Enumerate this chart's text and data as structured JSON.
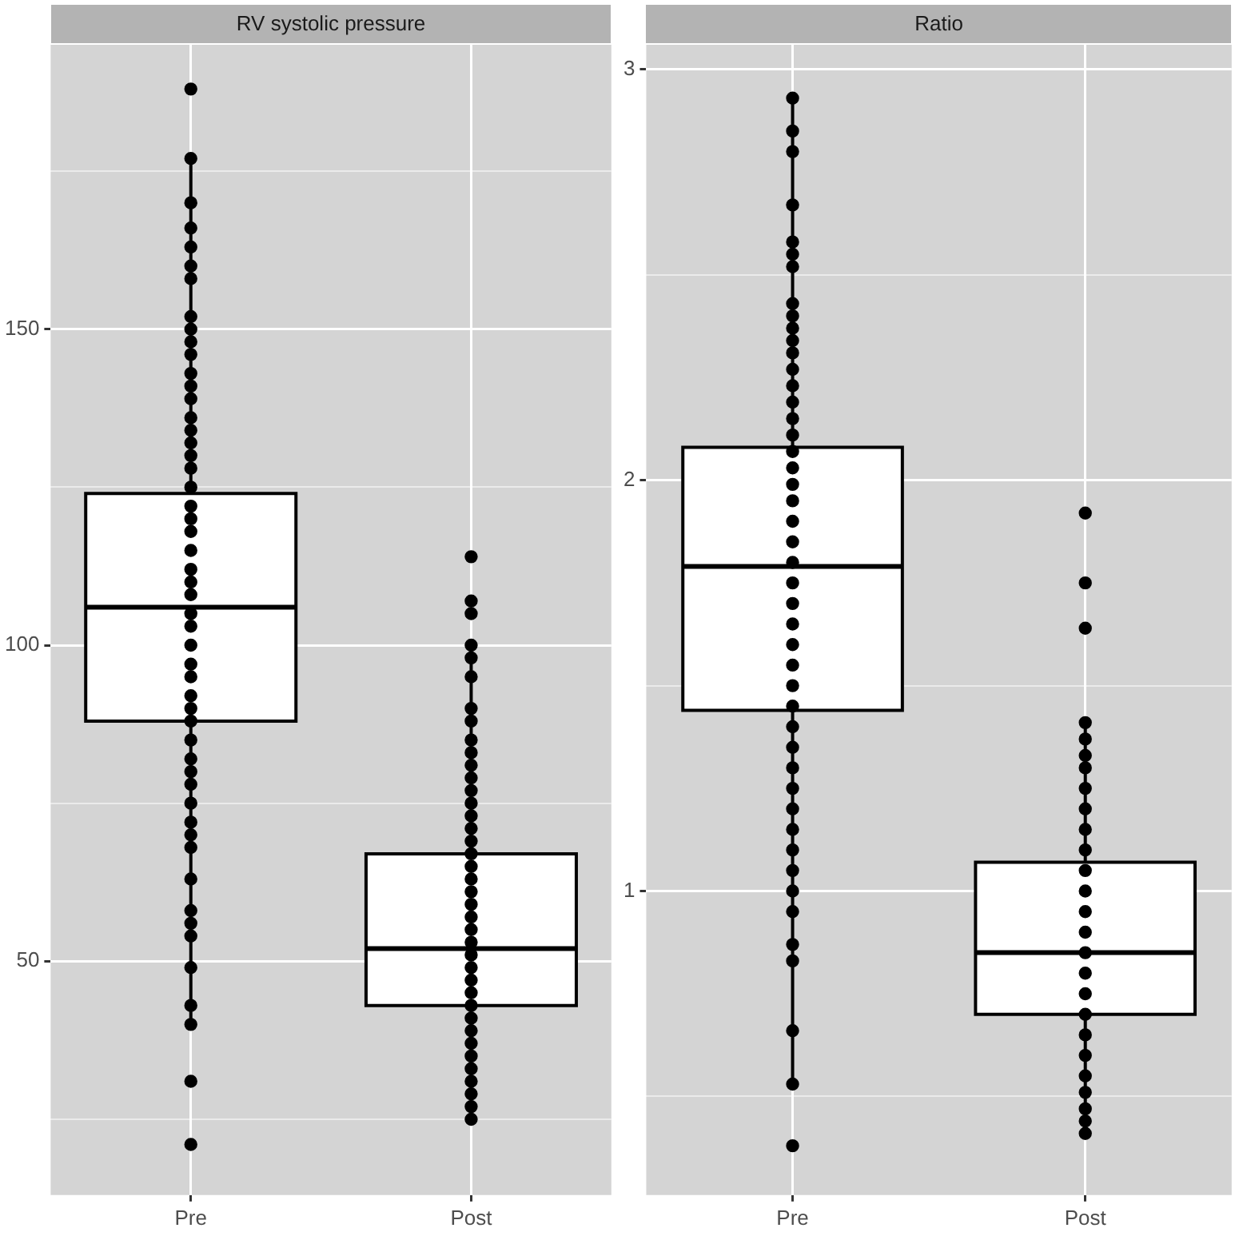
{
  "chart_data": [
    {
      "type": "box",
      "title": "RV systolic pressure",
      "categories": [
        "Pre",
        "Post"
      ],
      "grid": true,
      "ylim": [
        13,
        195
      ],
      "yticks": [
        {
          "value": 25,
          "label": null
        },
        50,
        {
          "value": 75,
          "label": null
        },
        100,
        {
          "value": 125,
          "label": null
        },
        150,
        {
          "value": 175,
          "label": null
        }
      ],
      "boxes": [
        {
          "low": 40,
          "q1": 88,
          "median": 106,
          "q3": 124,
          "high": 177
        },
        {
          "low": 26,
          "q1": 43,
          "median": 52,
          "q3": 67,
          "high": 100
        }
      ],
      "series": [
        {
          "type": "scatter",
          "color": "#000000",
          "x": [
            "Pre",
            "Pre",
            "Pre",
            "Pre",
            "Pre",
            "Pre",
            "Pre",
            "Pre",
            "Pre",
            "Pre",
            "Pre",
            "Pre",
            "Pre",
            "Pre",
            "Pre",
            "Pre",
            "Pre",
            "Pre",
            "Pre",
            "Pre",
            "Pre",
            "Pre",
            "Pre",
            "Pre",
            "Pre",
            "Pre",
            "Pre",
            "Pre",
            "Pre",
            "Pre",
            "Pre",
            "Pre",
            "Pre",
            "Pre",
            "Pre",
            "Pre",
            "Pre",
            "Pre",
            "Pre",
            "Pre",
            "Pre",
            "Pre",
            "Pre",
            "Pre",
            "Pre",
            "Pre",
            "Pre",
            "Pre",
            "Pre",
            "Pre",
            "Pre",
            "Pre"
          ],
          "values": [
            188,
            177,
            170,
            166,
            163,
            160,
            158,
            152,
            150,
            148,
            146,
            143,
            141,
            139,
            136,
            134,
            132,
            130,
            128,
            125,
            122,
            120,
            118,
            115,
            112,
            110,
            108,
            105,
            103,
            100,
            97,
            95,
            92,
            90,
            88,
            85,
            82,
            80,
            78,
            75,
            72,
            70,
            68,
            63,
            58,
            56,
            54,
            49,
            43,
            40,
            31,
            21
          ]
        },
        {
          "type": "scatter",
          "color": "#000000",
          "x": [
            "Post",
            "Post",
            "Post",
            "Post",
            "Post",
            "Post",
            "Post",
            "Post",
            "Post",
            "Post",
            "Post",
            "Post",
            "Post",
            "Post",
            "Post",
            "Post",
            "Post",
            "Post",
            "Post",
            "Post",
            "Post",
            "Post",
            "Post",
            "Post",
            "Post",
            "Post",
            "Post",
            "Post",
            "Post",
            "Post",
            "Post",
            "Post",
            "Post",
            "Post",
            "Post",
            "Post",
            "Post",
            "Post",
            "Post"
          ],
          "values": [
            114,
            107,
            105,
            100,
            98,
            95,
            90,
            88,
            85,
            83,
            81,
            79,
            77,
            75,
            73,
            71,
            69,
            67,
            65,
            63,
            61,
            59,
            57,
            55,
            53,
            51,
            49,
            47,
            45,
            43,
            41,
            39,
            37,
            35,
            33,
            31,
            29,
            27,
            25
          ]
        }
      ]
    },
    {
      "type": "box",
      "title": "Ratio",
      "categories": [
        "Pre",
        "Post"
      ],
      "grid": true,
      "ylim": [
        0.26,
        3.06
      ],
      "yticks": [
        {
          "value": 0.5,
          "label": null
        },
        1,
        {
          "value": 1.5,
          "label": null
        },
        2,
        {
          "value": 2.5,
          "label": null
        },
        3
      ],
      "boxes": [
        {
          "low": 0.53,
          "q1": 1.44,
          "median": 1.79,
          "q3": 2.08,
          "high": 2.93
        },
        {
          "low": 0.41,
          "q1": 0.7,
          "median": 0.85,
          "q3": 1.07,
          "high": 1.4
        }
      ],
      "series": [
        {
          "type": "scatter",
          "color": "#000000",
          "x": [
            "Pre",
            "Pre",
            "Pre",
            "Pre",
            "Pre",
            "Pre",
            "Pre",
            "Pre",
            "Pre",
            "Pre",
            "Pre",
            "Pre",
            "Pre",
            "Pre",
            "Pre",
            "Pre",
            "Pre",
            "Pre",
            "Pre",
            "Pre",
            "Pre",
            "Pre",
            "Pre",
            "Pre",
            "Pre",
            "Pre",
            "Pre",
            "Pre",
            "Pre",
            "Pre",
            "Pre",
            "Pre",
            "Pre",
            "Pre",
            "Pre",
            "Pre",
            "Pre",
            "Pre",
            "Pre",
            "Pre",
            "Pre",
            "Pre",
            "Pre",
            "Pre",
            "Pre",
            "Pre"
          ],
          "values": [
            2.93,
            2.85,
            2.8,
            2.67,
            2.58,
            2.55,
            2.52,
            2.43,
            2.4,
            2.37,
            2.34,
            2.31,
            2.27,
            2.23,
            2.19,
            2.15,
            2.11,
            2.07,
            2.03,
            1.99,
            1.95,
            1.9,
            1.85,
            1.8,
            1.75,
            1.7,
            1.65,
            1.6,
            1.55,
            1.5,
            1.45,
            1.4,
            1.35,
            1.3,
            1.25,
            1.2,
            1.15,
            1.1,
            1.05,
            1.0,
            0.95,
            0.87,
            0.83,
            0.66,
            0.53,
            0.38
          ]
        },
        {
          "type": "scatter",
          "color": "#000000",
          "x": [
            "Post",
            "Post",
            "Post",
            "Post",
            "Post",
            "Post",
            "Post",
            "Post",
            "Post",
            "Post",
            "Post",
            "Post",
            "Post",
            "Post",
            "Post",
            "Post",
            "Post",
            "Post",
            "Post",
            "Post",
            "Post",
            "Post",
            "Post",
            "Post",
            "Post",
            "Post"
          ],
          "values": [
            1.92,
            1.75,
            1.64,
            1.41,
            1.37,
            1.33,
            1.3,
            1.25,
            1.2,
            1.15,
            1.1,
            1.05,
            1.0,
            0.95,
            0.9,
            0.85,
            0.8,
            0.75,
            0.7,
            0.65,
            0.6,
            0.55,
            0.51,
            0.47,
            0.44,
            0.41
          ]
        }
      ]
    }
  ]
}
